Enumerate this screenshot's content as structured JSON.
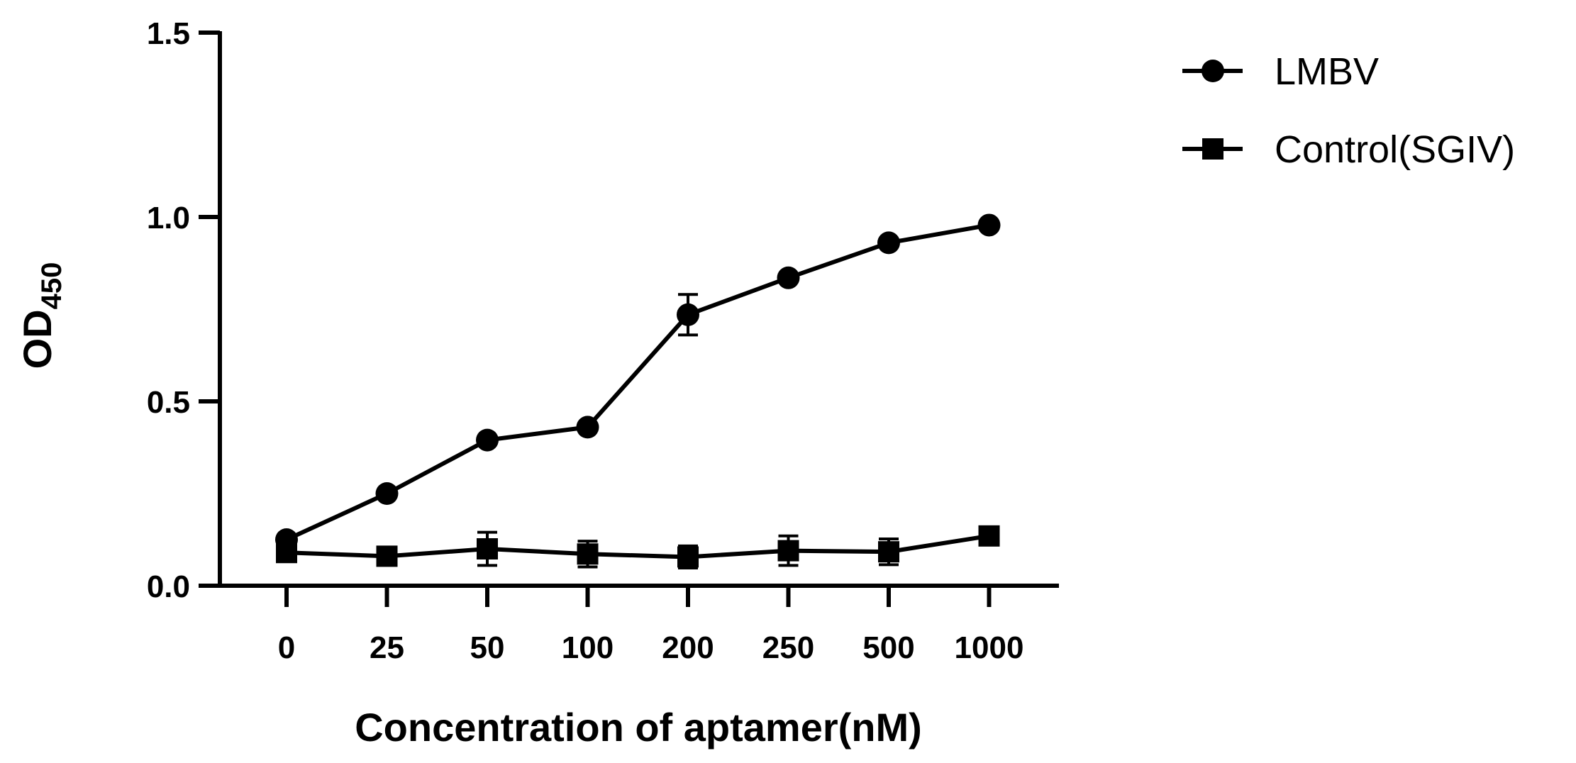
{
  "chart_data": {
    "type": "line",
    "title": "",
    "categories": [
      "0",
      "25",
      "50",
      "100",
      "200",
      "250",
      "500",
      "1000"
    ],
    "xlabel": "Concentration of aptamer(nM)",
    "ylabel": {
      "main": "OD",
      "subscript": "450"
    },
    "ylim": [
      0,
      1.5
    ],
    "yticks": [
      "0.0",
      "0.5",
      "1.0",
      "1.5"
    ],
    "ytick_values": [
      0,
      0.5,
      1.0,
      1.5
    ],
    "grid": false,
    "legend_position": "top-right",
    "series": [
      {
        "name": "LMBV",
        "marker": "circle",
        "values": [
          0.125,
          0.25,
          0.395,
          0.43,
          0.735,
          0.835,
          0.93,
          0.978
        ],
        "errors": [
          0.01,
          0.01,
          0.01,
          0.01,
          0.055,
          0.01,
          0.01,
          0.01
        ]
      },
      {
        "name": "Control(SGIV)",
        "marker": "square",
        "values": [
          0.09,
          0.08,
          0.1,
          0.086,
          0.078,
          0.095,
          0.092,
          0.135
        ],
        "errors": [
          0.01,
          0.01,
          0.045,
          0.035,
          0.03,
          0.04,
          0.035,
          0.01
        ]
      }
    ],
    "colors": {
      "line": "#000000",
      "background": "#ffffff"
    }
  }
}
